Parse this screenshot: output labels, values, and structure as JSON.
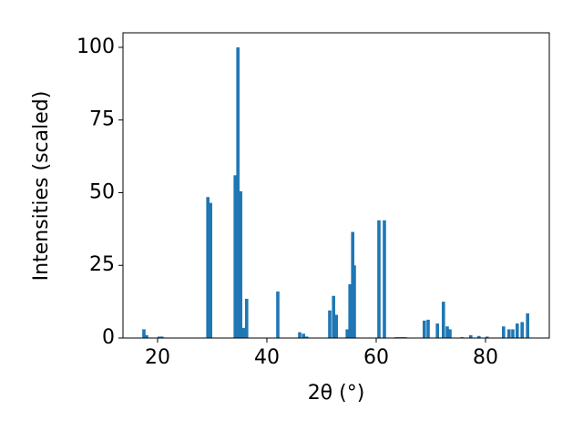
{
  "chart_data": {
    "type": "bar",
    "xlabel": "2θ (°)",
    "ylabel": "Intensities (scaled)",
    "color": "#1f77b4",
    "x": [
      17.5,
      18.0,
      20.3,
      20.8,
      29.2,
      29.7,
      34.2,
      34.7,
      35.2,
      35.7,
      36.3,
      42.0,
      46.0,
      46.7,
      47.3,
      51.5,
      52.2,
      52.7,
      54.7,
      55.2,
      55.7,
      56.0,
      60.5,
      61.5,
      63.7,
      64.2,
      64.7,
      65.3,
      68.8,
      69.5,
      71.2,
      72.3,
      73.0,
      73.5,
      75.7,
      77.3,
      78.8,
      80.3,
      83.3,
      84.3,
      85.0,
      85.8,
      86.7,
      87.7
    ],
    "values": [
      3,
      1,
      0.5,
      0.5,
      48.5,
      46.5,
      56,
      100,
      50.5,
      3.5,
      13.5,
      16,
      2,
      1.5,
      0.5,
      9.5,
      14.5,
      8,
      3,
      18.5,
      36.5,
      25,
      40.5,
      40.5,
      0.3,
      0.3,
      0.3,
      0.3,
      6,
      6.3,
      5,
      12.5,
      4,
      3,
      0.3,
      1,
      0.7,
      0.5,
      4,
      3,
      3,
      5,
      5.5,
      8.5
    ],
    "xlim": [
      13.67,
      91.67
    ],
    "ylim": [
      0,
      105
    ],
    "xticks": [
      20,
      40,
      60,
      80
    ],
    "yticks": [
      0,
      25,
      50,
      75,
      100
    ]
  }
}
